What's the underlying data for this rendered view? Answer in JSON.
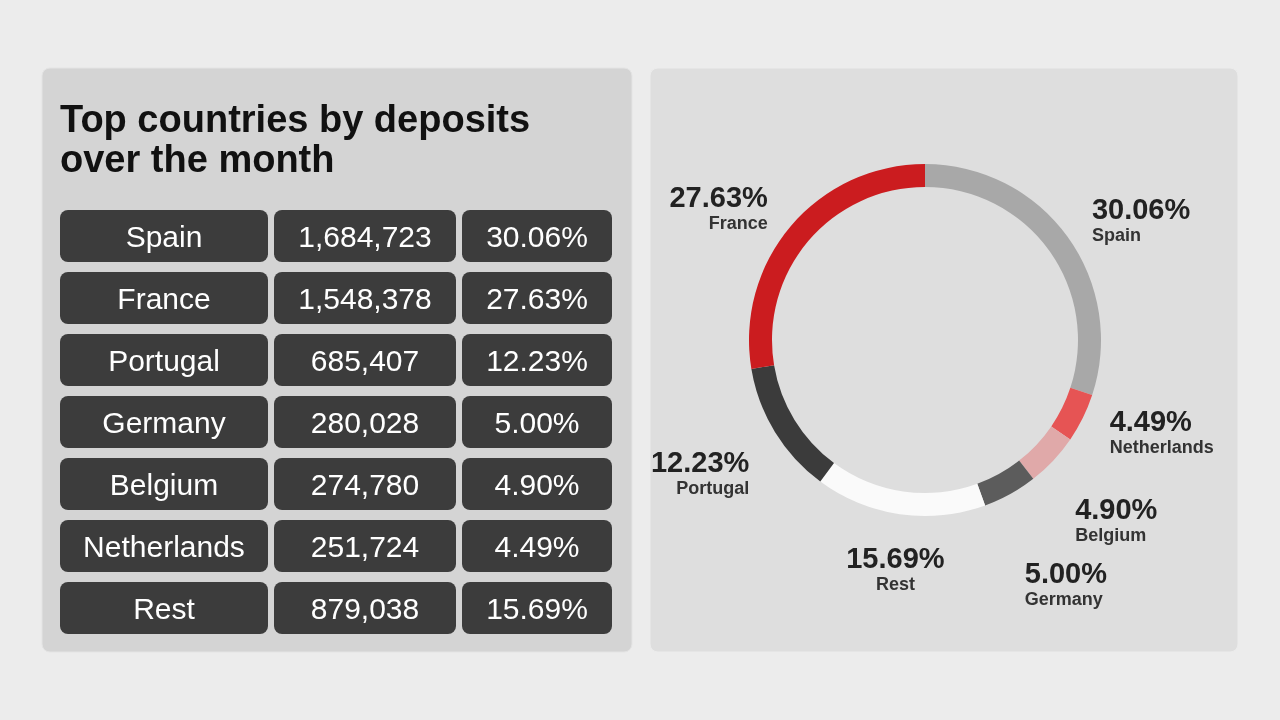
{
  "chart_data": [
    {
      "type": "other",
      "title": "Top countries by deposits over the month",
      "categories": [
        "Spain",
        "France",
        "Portugal",
        "Germany",
        "Belgium",
        "Netherlands",
        "Rest"
      ],
      "annotations": [
        "1,684,723",
        "30.06%",
        "1,548,378",
        "27.63%",
        "685,407",
        "12.23%",
        "280,028",
        "5.00%",
        "274,780",
        "4.90%",
        "251,724",
        "4.49%",
        "879,038",
        "15.69%"
      ]
    },
    {
      "type": "donut",
      "categories": [
        "Spain",
        "Netherlands",
        "Belgium",
        "Germany",
        "Rest",
        "Portugal",
        "France"
      ],
      "values": [
        30.06,
        4.49,
        4.9,
        5.0,
        15.69,
        12.23,
        27.63
      ],
      "value_labels": [
        "30.06%",
        "4.49%",
        "4.90%",
        "5.00%",
        "15.69%",
        "12.23%",
        "27.63%"
      ],
      "colors": [
        "#a8a8a8",
        "#e65454",
        "#e0a9a9",
        "#5c5c5c",
        "#fafafa",
        "#3b3b3b",
        "#cb1c1f"
      ]
    }
  ]
}
